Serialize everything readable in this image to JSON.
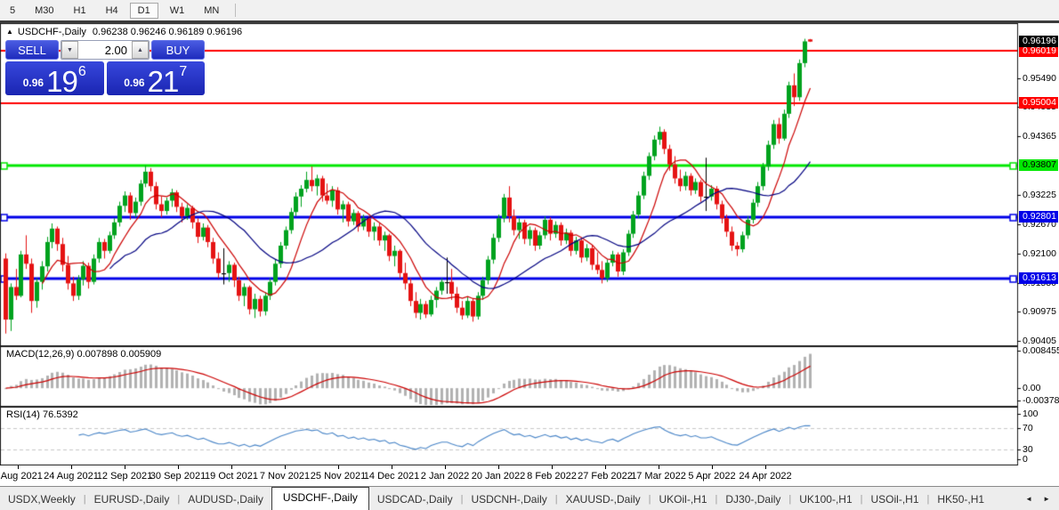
{
  "toolbar": {
    "timeframes": [
      {
        "label": "5",
        "active": false
      },
      {
        "label": "M30",
        "active": false
      },
      {
        "label": "H1",
        "active": false
      },
      {
        "label": "H4",
        "active": false
      },
      {
        "label": "D1",
        "active": true
      },
      {
        "label": "W1",
        "active": false
      },
      {
        "label": "MN",
        "active": false
      }
    ]
  },
  "header": {
    "collapse_arrow": "▲",
    "symbol_title": "USDCHF-,Daily",
    "ohlc_text": "0.96238 0.96246 0.96189 0.96196"
  },
  "trade_panel": {
    "sell_label": "SELL",
    "buy_label": "BUY",
    "volume": "2.00",
    "spin_down": "▼",
    "spin_up": "▲",
    "sell_price_prefix": "0.96",
    "sell_price_big": "19",
    "sell_price_sup": "6",
    "buy_price_prefix": "0.96",
    "buy_price_big": "21",
    "buy_price_sup": "7"
  },
  "indicators": {
    "macd_label": "MACD(12,26,9) 0.007898 0.005909",
    "rsi_label": "RSI(14) 76.5392"
  },
  "chart_data": {
    "type": "candlestick",
    "title": "USDCHF-,Daily",
    "current_ohlc": {
      "open": 0.96238,
      "high": 0.96246,
      "low": 0.96189,
      "close": 0.96196
    },
    "current_price_badge": {
      "value": "0.96196",
      "bg": "#000000",
      "fg": "#ffffff",
      "price": 0.96196
    },
    "y_axis_labels": [
      "0.95490",
      "0.94935",
      "0.94365",
      "0.93225",
      "0.92670",
      "0.92100",
      "0.91530",
      "0.90975",
      "0.90405"
    ],
    "x_labels": [
      "5 Aug 2021",
      "24 Aug 2021",
      "12 Sep 2021",
      "30 Sep 2021",
      "19 Oct 2021",
      "7 Nov 2021",
      "25 Nov 2021",
      "14 Dec 2021",
      "2 Jan 2022",
      "20 Jan 2022",
      "8 Feb 2022",
      "27 Feb 2022",
      "17 Mar 2022",
      "5 Apr 2022",
      "24 Apr 2022"
    ],
    "horizontal_lines": [
      {
        "price": 0.96019,
        "label": "0.96019",
        "color": "#ff0000",
        "label_fg": "#ffffff",
        "width": 2,
        "selected": false
      },
      {
        "price": 0.95004,
        "label": "0.95004",
        "color": "#ff0000",
        "label_fg": "#ffffff",
        "width": 2,
        "selected": false
      },
      {
        "price": 0.93807,
        "label": "0.93807",
        "color": "#00e800",
        "label_fg": "#000000",
        "width": 3,
        "selected": true
      },
      {
        "price": 0.92801,
        "label": "0.92801",
        "color": "#0000e8",
        "label_fg": "#ffffff",
        "width": 3,
        "selected": true
      },
      {
        "price": 0.91613,
        "label": "0.91613",
        "color": "#0000e8",
        "label_fg": "#ffffff",
        "width": 3,
        "selected": true
      }
    ],
    "overlays": [
      {
        "name": "ma-fast",
        "type": "sma",
        "period": 8,
        "color": "#cc0000"
      },
      {
        "name": "ma-slow",
        "type": "sma",
        "period": 21,
        "color": "#000080"
      }
    ],
    "macd": {
      "params": [
        12,
        26,
        9
      ],
      "current_values": [
        0.007898,
        0.005909
      ],
      "axis_labels": [
        "0.008455",
        "0.00",
        "-0.003783"
      ],
      "axis_max": 0.008455,
      "axis_min": -0.003783,
      "hist_color": "#b2b2b2",
      "signal_color": "#cc0000"
    },
    "rsi": {
      "period": 14,
      "current_value": 76.5392,
      "axis_labels": [
        "100",
        "70",
        "30",
        "0"
      ],
      "levels": [
        70,
        30
      ],
      "color": "#4a86c8"
    },
    "candle_colors": {
      "up": "#00a21e",
      "down": "#e51212",
      "doji": "#000000"
    },
    "candles": [
      [
        0.92,
        0.921,
        0.9055,
        0.9082
      ],
      [
        0.9082,
        0.9152,
        0.906,
        0.9145
      ],
      [
        0.9145,
        0.918,
        0.912,
        0.9128
      ],
      [
        0.9128,
        0.9215,
        0.9125,
        0.9208
      ],
      [
        0.9208,
        0.9245,
        0.918,
        0.919
      ],
      [
        0.919,
        0.92,
        0.9095,
        0.9118
      ],
      [
        0.9118,
        0.9162,
        0.9105,
        0.9155
      ],
      [
        0.9155,
        0.9195,
        0.914,
        0.9185
      ],
      [
        0.9185,
        0.9242,
        0.9175,
        0.9232
      ],
      [
        0.9232,
        0.9268,
        0.922,
        0.9258
      ],
      [
        0.9258,
        0.9262,
        0.9215,
        0.9228
      ],
      [
        0.9228,
        0.924,
        0.9175,
        0.9188
      ],
      [
        0.9188,
        0.9205,
        0.914,
        0.9152
      ],
      [
        0.9152,
        0.9165,
        0.9118,
        0.9128
      ],
      [
        0.9128,
        0.9168,
        0.912,
        0.916
      ],
      [
        0.916,
        0.9195,
        0.9148,
        0.9186
      ],
      [
        0.9186,
        0.9192,
        0.9142,
        0.9155
      ],
      [
        0.9155,
        0.9208,
        0.915,
        0.92
      ],
      [
        0.92,
        0.924,
        0.9192,
        0.9232
      ],
      [
        0.9232,
        0.9238,
        0.92,
        0.9215
      ],
      [
        0.9215,
        0.9252,
        0.921,
        0.9245
      ],
      [
        0.9245,
        0.9278,
        0.9238,
        0.927
      ],
      [
        0.927,
        0.931,
        0.9262,
        0.9302
      ],
      [
        0.9302,
        0.933,
        0.929,
        0.9322
      ],
      [
        0.9322,
        0.9328,
        0.9275,
        0.9288
      ],
      [
        0.9288,
        0.9318,
        0.928,
        0.931
      ],
      [
        0.931,
        0.9352,
        0.9302,
        0.9345
      ],
      [
        0.9345,
        0.938,
        0.9338,
        0.9368
      ],
      [
        0.9368,
        0.9375,
        0.933,
        0.934
      ],
      [
        0.934,
        0.9348,
        0.9295,
        0.9305
      ],
      [
        0.9305,
        0.932,
        0.928,
        0.9292
      ],
      [
        0.9292,
        0.9318,
        0.9285,
        0.9312
      ],
      [
        0.9312,
        0.9335,
        0.93,
        0.9328
      ],
      [
        0.9328,
        0.9332,
        0.929,
        0.93
      ],
      [
        0.93,
        0.9308,
        0.927,
        0.9282
      ],
      [
        0.9282,
        0.9305,
        0.9275,
        0.9298
      ],
      [
        0.9298,
        0.9302,
        0.9258,
        0.927
      ],
      [
        0.927,
        0.9278,
        0.923,
        0.9242
      ],
      [
        0.9242,
        0.9268,
        0.9235,
        0.926
      ],
      [
        0.926,
        0.9265,
        0.9222,
        0.9232
      ],
      [
        0.9232,
        0.924,
        0.919,
        0.92
      ],
      [
        0.92,
        0.9212,
        0.9162,
        0.9172
      ],
      [
        0.9172,
        0.922,
        0.915,
        0.9172
      ],
      [
        0.9172,
        0.9195,
        0.9155,
        0.9188
      ],
      [
        0.9188,
        0.9192,
        0.9145,
        0.9158
      ],
      [
        0.9158,
        0.9165,
        0.9118,
        0.9128
      ],
      [
        0.9128,
        0.9152,
        0.9108,
        0.9145
      ],
      [
        0.9145,
        0.9148,
        0.9092,
        0.9102
      ],
      [
        0.9102,
        0.9132,
        0.9085,
        0.9122
      ],
      [
        0.9122,
        0.9128,
        0.9088,
        0.9098
      ],
      [
        0.9098,
        0.9135,
        0.909,
        0.9128
      ],
      [
        0.9128,
        0.9162,
        0.912,
        0.9155
      ],
      [
        0.9155,
        0.9198,
        0.9148,
        0.919
      ],
      [
        0.919,
        0.9232,
        0.9182,
        0.9225
      ],
      [
        0.9225,
        0.9262,
        0.9218,
        0.9255
      ],
      [
        0.9255,
        0.9298,
        0.9248,
        0.929
      ],
      [
        0.929,
        0.9328,
        0.9282,
        0.932
      ],
      [
        0.932,
        0.9342,
        0.93,
        0.9335
      ],
      [
        0.9335,
        0.9368,
        0.9328,
        0.9352
      ],
      [
        0.9352,
        0.9378,
        0.933,
        0.934
      ],
      [
        0.934,
        0.9362,
        0.9322,
        0.9355
      ],
      [
        0.9355,
        0.936,
        0.931,
        0.9322
      ],
      [
        0.9322,
        0.9345,
        0.9305,
        0.9312
      ],
      [
        0.9312,
        0.934,
        0.93,
        0.9332
      ],
      [
        0.9332,
        0.9338,
        0.9285,
        0.9295
      ],
      [
        0.9295,
        0.9312,
        0.927,
        0.9305
      ],
      [
        0.9305,
        0.931,
        0.9262,
        0.9272
      ],
      [
        0.9272,
        0.9295,
        0.9265,
        0.9288
      ],
      [
        0.9288,
        0.9292,
        0.9252,
        0.9262
      ],
      [
        0.9262,
        0.9285,
        0.9255,
        0.9278
      ],
      [
        0.9278,
        0.9282,
        0.9242,
        0.9252
      ],
      [
        0.9252,
        0.927,
        0.9235,
        0.9262
      ],
      [
        0.9262,
        0.9268,
        0.9225,
        0.9235
      ],
      [
        0.9235,
        0.9252,
        0.9215,
        0.9245
      ],
      [
        0.9245,
        0.9248,
        0.9195,
        0.9205
      ],
      [
        0.9205,
        0.9225,
        0.9185,
        0.9215
      ],
      [
        0.9215,
        0.9218,
        0.9162,
        0.9172
      ],
      [
        0.9172,
        0.9192,
        0.914,
        0.9152
      ],
      [
        0.9152,
        0.9162,
        0.9108,
        0.9118
      ],
      [
        0.9118,
        0.9135,
        0.9085,
        0.9095
      ],
      [
        0.9095,
        0.9122,
        0.9082,
        0.9112
      ],
      [
        0.9112,
        0.9118,
        0.9085,
        0.9092
      ],
      [
        0.9092,
        0.9128,
        0.9088,
        0.912
      ],
      [
        0.912,
        0.9145,
        0.9105,
        0.9138
      ],
      [
        0.9138,
        0.9162,
        0.913,
        0.9155
      ],
      [
        0.9155,
        0.9202,
        0.9132,
        0.9155
      ],
      [
        0.9155,
        0.918,
        0.912,
        0.9132
      ],
      [
        0.9132,
        0.9145,
        0.9095,
        0.9105
      ],
      [
        0.9105,
        0.9118,
        0.9082,
        0.909
      ],
      [
        0.909,
        0.9125,
        0.9085,
        0.9118
      ],
      [
        0.9118,
        0.9122,
        0.9078,
        0.9088
      ],
      [
        0.9088,
        0.9135,
        0.9082,
        0.9128
      ],
      [
        0.9128,
        0.9165,
        0.912,
        0.9158
      ],
      [
        0.9158,
        0.9205,
        0.915,
        0.9198
      ],
      [
        0.9198,
        0.9248,
        0.919,
        0.924
      ],
      [
        0.924,
        0.9285,
        0.9232,
        0.9278
      ],
      [
        0.9278,
        0.9325,
        0.927,
        0.9318
      ],
      [
        0.9318,
        0.934,
        0.927,
        0.9282
      ],
      [
        0.9282,
        0.9295,
        0.9245,
        0.9255
      ],
      [
        0.9255,
        0.9278,
        0.9238,
        0.927
      ],
      [
        0.927,
        0.9275,
        0.9228,
        0.9238
      ],
      [
        0.9238,
        0.9262,
        0.9225,
        0.9255
      ],
      [
        0.9255,
        0.926,
        0.9215,
        0.9225
      ],
      [
        0.9225,
        0.9252,
        0.9218,
        0.9245
      ],
      [
        0.9245,
        0.9282,
        0.9238,
        0.9275
      ],
      [
        0.9275,
        0.928,
        0.9235,
        0.9248
      ],
      [
        0.9248,
        0.9272,
        0.924,
        0.9265
      ],
      [
        0.9265,
        0.927,
        0.9225,
        0.9235
      ],
      [
        0.9235,
        0.9258,
        0.9228,
        0.925
      ],
      [
        0.925,
        0.9255,
        0.9205,
        0.9215
      ],
      [
        0.9215,
        0.9242,
        0.9208,
        0.9235
      ],
      [
        0.9235,
        0.924,
        0.9192,
        0.9202
      ],
      [
        0.9202,
        0.9228,
        0.9195,
        0.922
      ],
      [
        0.922,
        0.9225,
        0.9178,
        0.9188
      ],
      [
        0.9188,
        0.9212,
        0.917,
        0.9178
      ],
      [
        0.9178,
        0.9195,
        0.9152,
        0.9162
      ],
      [
        0.9162,
        0.9198,
        0.9155,
        0.9192
      ],
      [
        0.9192,
        0.9215,
        0.9185,
        0.9208
      ],
      [
        0.9208,
        0.9212,
        0.9165,
        0.9175
      ],
      [
        0.9175,
        0.9218,
        0.9168,
        0.9212
      ],
      [
        0.9212,
        0.9255,
        0.9205,
        0.9248
      ],
      [
        0.9248,
        0.9292,
        0.924,
        0.9285
      ],
      [
        0.9285,
        0.933,
        0.9278,
        0.9322
      ],
      [
        0.9322,
        0.9368,
        0.9315,
        0.936
      ],
      [
        0.936,
        0.9405,
        0.9352,
        0.9398
      ],
      [
        0.9398,
        0.9438,
        0.939,
        0.943
      ],
      [
        0.943,
        0.9455,
        0.942,
        0.9445
      ],
      [
        0.9445,
        0.945,
        0.9402,
        0.9412
      ],
      [
        0.9412,
        0.942,
        0.937,
        0.9382
      ],
      [
        0.9382,
        0.9398,
        0.9345,
        0.9355
      ],
      [
        0.9355,
        0.9372,
        0.933,
        0.934
      ],
      [
        0.934,
        0.9368,
        0.9332,
        0.936
      ],
      [
        0.936,
        0.9365,
        0.9322,
        0.9332
      ],
      [
        0.9332,
        0.9355,
        0.9325,
        0.9348
      ],
      [
        0.9348,
        0.9352,
        0.931,
        0.932
      ],
      [
        0.932,
        0.9395,
        0.9292,
        0.932
      ],
      [
        0.932,
        0.9342,
        0.9312,
        0.9335
      ],
      [
        0.9335,
        0.934,
        0.9295,
        0.9305
      ],
      [
        0.9305,
        0.9312,
        0.9268,
        0.9278
      ],
      [
        0.9278,
        0.9285,
        0.9242,
        0.9252
      ],
      [
        0.9252,
        0.9262,
        0.9215,
        0.9225
      ],
      [
        0.9225,
        0.9232,
        0.9205,
        0.9218
      ],
      [
        0.9218,
        0.9252,
        0.9212,
        0.9245
      ],
      [
        0.9245,
        0.9282,
        0.9238,
        0.9275
      ],
      [
        0.9275,
        0.9315,
        0.9268,
        0.9308
      ],
      [
        0.9308,
        0.9348,
        0.93,
        0.934
      ],
      [
        0.934,
        0.9385,
        0.9332,
        0.9378
      ],
      [
        0.9378,
        0.9428,
        0.937,
        0.942
      ],
      [
        0.942,
        0.9468,
        0.9412,
        0.946
      ],
      [
        0.946,
        0.9472,
        0.9422,
        0.9432
      ],
      [
        0.9432,
        0.9488,
        0.9428,
        0.948
      ],
      [
        0.948,
        0.9542,
        0.9472,
        0.9535
      ],
      [
        0.9535,
        0.9558,
        0.9495,
        0.9512
      ],
      [
        0.9512,
        0.9585,
        0.9505,
        0.9578
      ],
      [
        0.9578,
        0.9625,
        0.957,
        0.962
      ],
      [
        0.96238,
        0.96246,
        0.96189,
        0.96196
      ]
    ]
  },
  "tabs": {
    "items": [
      {
        "label": "USDX,Weekly",
        "active": false
      },
      {
        "label": "EURUSD-,Daily",
        "active": false
      },
      {
        "label": "AUDUSD-,Daily",
        "active": false
      },
      {
        "label": "USDCHF-,Daily",
        "active": true
      },
      {
        "label": "USDCAD-,Daily",
        "active": false
      },
      {
        "label": "USDCNH-,Daily",
        "active": false
      },
      {
        "label": "XAUUSD-,Daily",
        "active": false
      },
      {
        "label": "UKOil-,H1",
        "active": false
      },
      {
        "label": "DJ30-,Daily",
        "active": false
      },
      {
        "label": "UK100-,H1",
        "active": false
      },
      {
        "label": "USOil-,H1",
        "active": false
      },
      {
        "label": "HK50-,H1",
        "active": false
      }
    ],
    "scroll_left": "◄",
    "scroll_right": "►"
  }
}
